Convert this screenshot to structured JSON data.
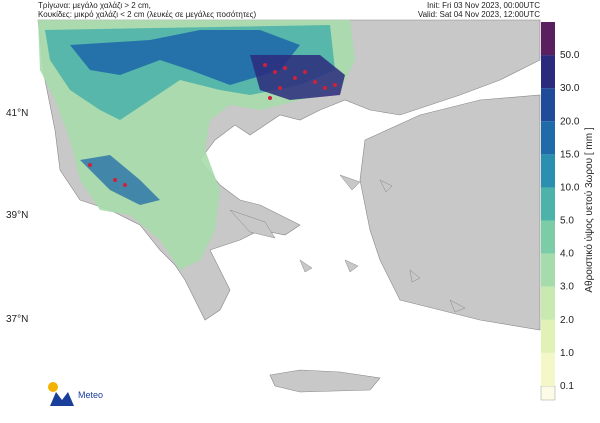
{
  "header": {
    "left_lines": [
      "Τρίγωνα: μεγάλο χαλάζι > 2 cm,",
      "Κουκίδες: μικρό χαλάζι < 2 cm (λευκές σε μεγάλες ποσότητες)"
    ],
    "right_lines": [
      "Init: Fri 03 Nov 2023, 00:00UTC",
      "Valid: Sat 04 Nov 2023, 12:00UTC"
    ]
  },
  "map": {
    "lat_labels": [
      "41°N",
      "39°N",
      "37°N"
    ]
  },
  "colorbar": {
    "title": "Αθροιστικό ύψος υετού 3ωρου [ mm ]",
    "levels": [
      "0.1",
      "1.0",
      "2.0",
      "3.0",
      "4.0",
      "5.0",
      "10.0",
      "15.0",
      "20.0",
      "30.0",
      "50.0"
    ],
    "colors": [
      "#f4f7c8",
      "#e2f2b6",
      "#c8eab0",
      "#a6dcab",
      "#7ccca8",
      "#4db3aa",
      "#2a8fb0",
      "#1f6aa8",
      "#1f4b9a",
      "#2c2a7c",
      "#5a1f5e"
    ]
  },
  "logo": {
    "name": "Meteo"
  }
}
